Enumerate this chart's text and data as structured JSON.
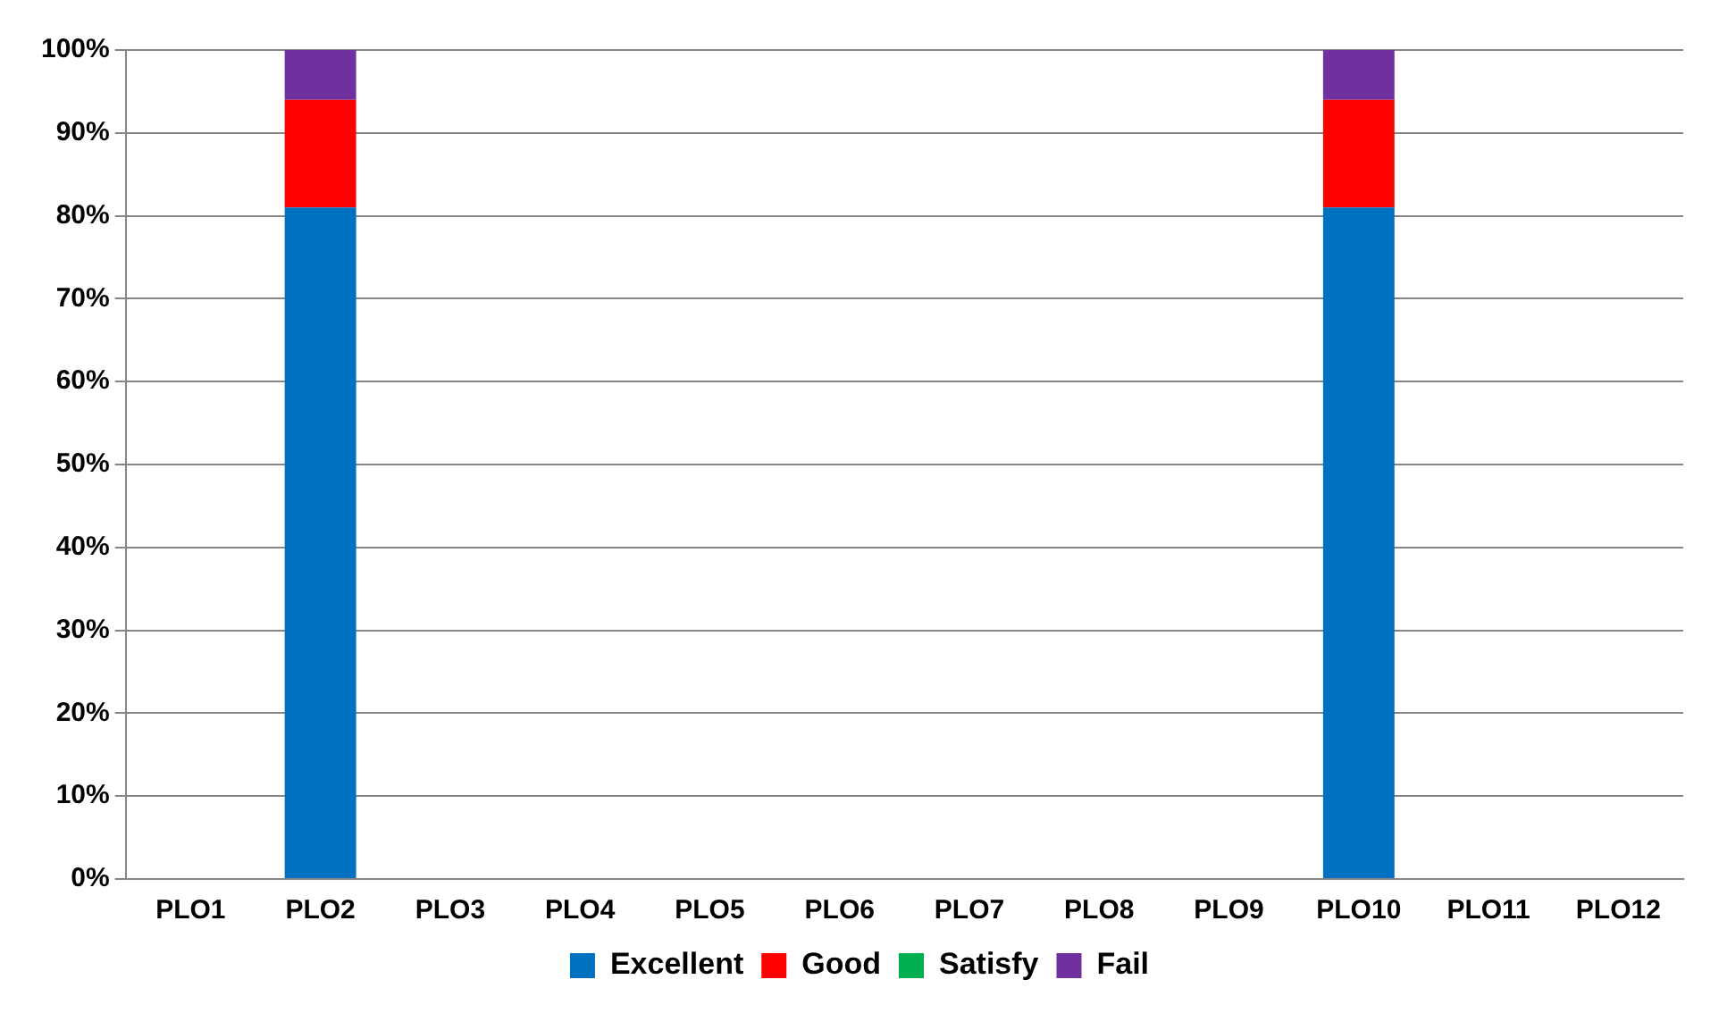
{
  "chart_data": {
    "type": "bar",
    "stacked": true,
    "categories": [
      "PLO1",
      "PLO2",
      "PLO3",
      "PLO4",
      "PLO5",
      "PLO6",
      "PLO7",
      "PLO8",
      "PLO9",
      "PLO10",
      "PLO11",
      "PLO12"
    ],
    "series": [
      {
        "name": "Excellent",
        "color": "#0070c0",
        "values": [
          0,
          81,
          0,
          0,
          0,
          0,
          0,
          0,
          0,
          81,
          0,
          0
        ]
      },
      {
        "name": "Good",
        "color": "#ff0000",
        "values": [
          0,
          13,
          0,
          0,
          0,
          0,
          0,
          0,
          0,
          13,
          0,
          0
        ]
      },
      {
        "name": "Satisfy",
        "color": "#00b050",
        "values": [
          0,
          0,
          0,
          0,
          0,
          0,
          0,
          0,
          0,
          0,
          0,
          0
        ]
      },
      {
        "name": "Fail",
        "color": "#7030a0",
        "values": [
          0,
          6,
          0,
          0,
          0,
          0,
          0,
          0,
          0,
          6,
          0,
          0
        ]
      }
    ],
    "ylim": [
      0,
      100
    ],
    "yticks": [
      {
        "value": 0,
        "label": "0%"
      },
      {
        "value": 10,
        "label": "10%"
      },
      {
        "value": 20,
        "label": "20%"
      },
      {
        "value": 30,
        "label": "30%"
      },
      {
        "value": 40,
        "label": "40%"
      },
      {
        "value": 50,
        "label": "50%"
      },
      {
        "value": 60,
        "label": "60%"
      },
      {
        "value": 70,
        "label": "70%"
      },
      {
        "value": 80,
        "label": "80%"
      },
      {
        "value": 90,
        "label": "90%"
      },
      {
        "value": 100,
        "label": "100%"
      }
    ],
    "grid": "y",
    "legend": "bottom"
  }
}
